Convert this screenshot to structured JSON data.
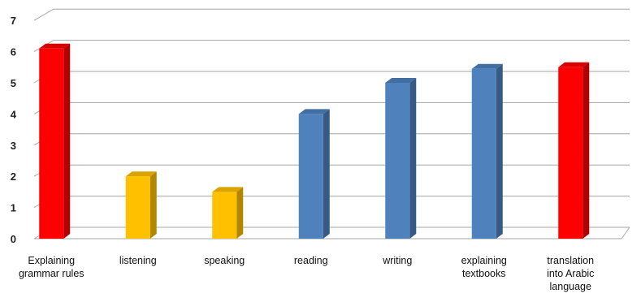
{
  "chart_data": {
    "type": "bar",
    "title": "",
    "xlabel": "",
    "ylabel": "",
    "categories": [
      "Explaining\ngrammar rules",
      "listening",
      "speaking",
      "reading",
      "writing",
      "explaining\ntextbooks",
      "translation\ninto Arabic\nlanguage"
    ],
    "values": [
      6.1,
      2.0,
      1.5,
      4.0,
      5.0,
      5.45,
      5.5
    ],
    "colors": [
      "#ff0000",
      "#ffc000",
      "#ffc000",
      "#4f81bd",
      "#4f81bd",
      "#4f81bd",
      "#ff0000"
    ],
    "ylim": [
      0,
      7
    ],
    "yticks": [
      "0",
      "1",
      "2",
      "3",
      "4",
      "5",
      "6",
      "7"
    ],
    "grid": true,
    "legend": "none",
    "style": "3d-column"
  }
}
